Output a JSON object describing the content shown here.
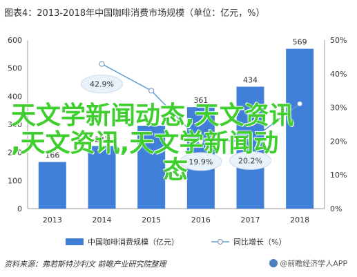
{
  "title": "图表4：2013-2018年中国咖啡消费市场规模（单位：亿元，%）",
  "chart_data": {
    "type": "bar",
    "categories": [
      "2013",
      "2014",
      "2015",
      "2016",
      "2017",
      "2018"
    ],
    "series": [
      {
        "name": "中国咖啡消费规模（亿元）",
        "type": "bar",
        "values": [
          166,
          223,
          295,
          361,
          434,
          569
        ],
        "color": "#3f7fd8"
      },
      {
        "name": "同比增长（%）",
        "type": "line",
        "values": [
          null,
          42.9,
          35.0,
          19.9,
          20.2,
          31.1
        ],
        "color": "#5b9bd5"
      }
    ],
    "bar_labels": [
      "166",
      "223",
      "",
      "361",
      "434",
      "569"
    ],
    "line_labels": [
      "",
      "42.9%",
      "",
      "19.9%",
      "20.2%",
      ""
    ],
    "y_left": {
      "lim": [
        0,
        600
      ],
      "ticks": [
        "0",
        "100",
        "200",
        "300",
        "400",
        "500",
        "600"
      ]
    },
    "y_right": {
      "lim": [
        0,
        50
      ],
      "ticks": [
        "0%",
        "10%",
        "20%",
        "30%",
        "40%",
        "50%"
      ]
    },
    "grid": false,
    "legend": "bottom"
  },
  "overlay": {
    "line1": "天文学新闻动态,天文资讯",
    "line2": ",天文资讯,天文学新闻动",
    "line3": "态"
  },
  "source": "资料来源：弗若斯特沙利文 前瞻产业研究院整理",
  "brand": "@前瞻经济学人APP"
}
